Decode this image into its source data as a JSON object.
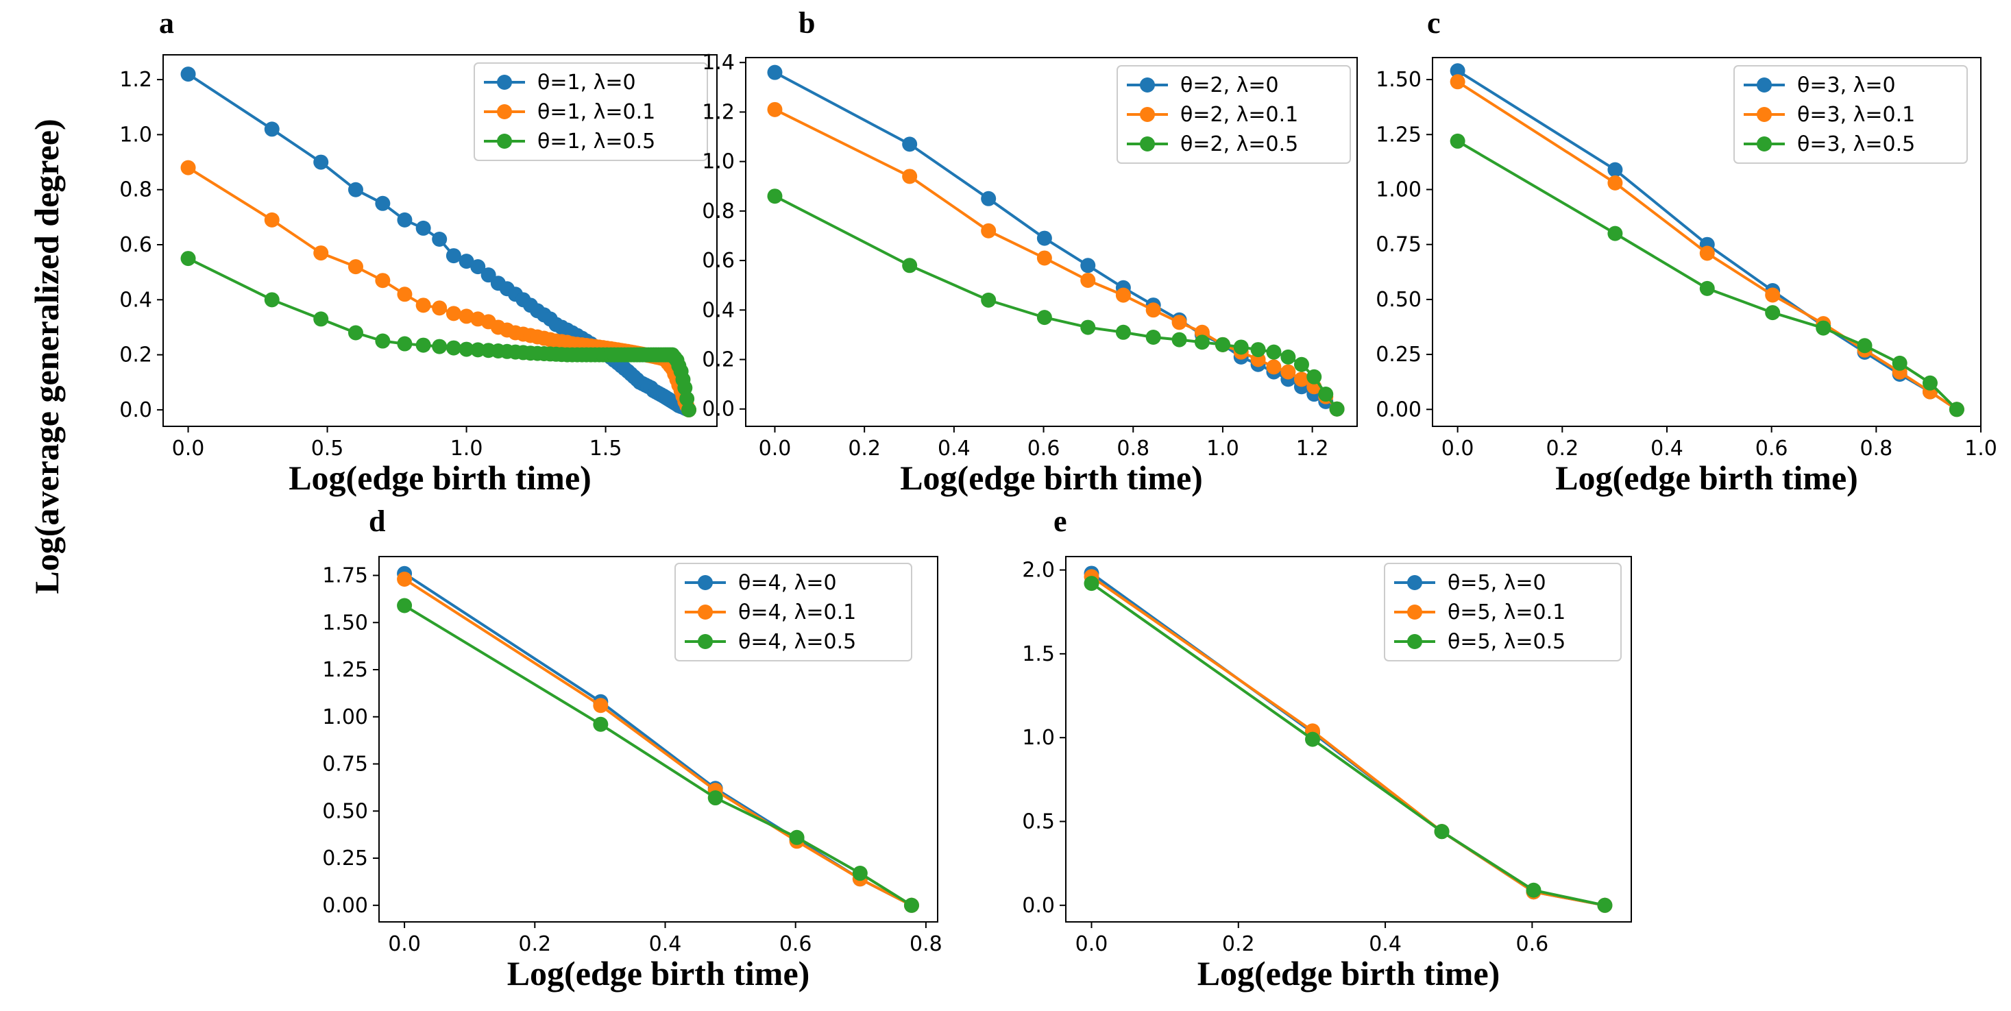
{
  "figure": {
    "shared_ylabel": "Log(average generalized degree)"
  },
  "colors": {
    "lambda_0": "#1f77b4",
    "lambda_0_1": "#ff7f0e",
    "lambda_0_5": "#2ca02c"
  },
  "chart_data": [
    {
      "type": "line",
      "panel": "a",
      "xlabel": "Log(edge birth time)",
      "xlim": [
        -0.09,
        1.9
      ],
      "ylim": [
        -0.06,
        1.29
      ],
      "xticks": [
        "0.0",
        "0.5",
        "1.0",
        "1.5"
      ],
      "xtick_values": [
        0,
        0.5,
        1.0,
        1.5
      ],
      "yticks": [
        "0.0",
        "0.2",
        "0.4",
        "0.6",
        "0.8",
        "1.0",
        "1.2"
      ],
      "ytick_values": [
        0,
        0.2,
        0.4,
        0.6,
        0.8,
        1.0,
        1.2
      ],
      "series": [
        {
          "name": "θ=1, λ=0",
          "x": [
            0,
            0.301,
            0.477,
            0.602,
            0.699,
            0.778,
            0.845,
            0.903,
            0.954,
            1.0,
            1.041,
            1.079,
            1.114,
            1.146,
            1.176,
            1.204,
            1.23,
            1.255,
            1.279,
            1.301,
            1.322,
            1.342,
            1.362,
            1.38,
            1.398,
            1.415,
            1.431,
            1.447,
            1.462,
            1.477,
            1.491,
            1.505,
            1.519,
            1.531,
            1.544,
            1.556,
            1.568,
            1.58,
            1.591,
            1.602,
            1.613,
            1.623,
            1.633,
            1.643,
            1.653,
            1.663,
            1.672,
            1.681,
            1.69,
            1.699,
            1.708,
            1.716,
            1.724,
            1.732,
            1.74,
            1.748,
            1.756,
            1.763,
            1.771,
            1.778,
            1.785,
            1.792,
            1.799
          ],
          "values": [
            1.22,
            1.02,
            0.9,
            0.8,
            0.75,
            0.69,
            0.66,
            0.62,
            0.56,
            0.54,
            0.52,
            0.49,
            0.46,
            0.44,
            0.42,
            0.4,
            0.38,
            0.36,
            0.345,
            0.33,
            0.31,
            0.3,
            0.29,
            0.28,
            0.27,
            0.26,
            0.25,
            0.24,
            0.23,
            0.22,
            0.215,
            0.2,
            0.19,
            0.18,
            0.17,
            0.16,
            0.15,
            0.14,
            0.13,
            0.12,
            0.11,
            0.1,
            0.095,
            0.09,
            0.085,
            0.08,
            0.07,
            0.065,
            0.06,
            0.055,
            0.05,
            0.045,
            0.04,
            0.035,
            0.03,
            0.025,
            0.02,
            0.015,
            0.012,
            0.01,
            0.006,
            0.003,
            0.0
          ]
        },
        {
          "name": "θ=1, λ=0.1",
          "x": [
            0,
            0.301,
            0.477,
            0.602,
            0.699,
            0.778,
            0.845,
            0.903,
            0.954,
            1.0,
            1.041,
            1.079,
            1.114,
            1.146,
            1.176,
            1.204,
            1.23,
            1.255,
            1.279,
            1.301,
            1.322,
            1.342,
            1.362,
            1.38,
            1.398,
            1.415,
            1.431,
            1.447,
            1.462,
            1.477,
            1.491,
            1.505,
            1.519,
            1.531,
            1.544,
            1.556,
            1.568,
            1.58,
            1.591,
            1.602,
            1.613,
            1.623,
            1.633,
            1.643,
            1.653,
            1.663,
            1.672,
            1.681,
            1.69,
            1.699,
            1.708,
            1.716,
            1.724,
            1.732,
            1.74,
            1.748,
            1.756,
            1.763,
            1.771,
            1.778,
            1.785,
            1.792,
            1.799
          ],
          "values": [
            0.88,
            0.69,
            0.57,
            0.52,
            0.47,
            0.42,
            0.38,
            0.37,
            0.35,
            0.34,
            0.33,
            0.32,
            0.3,
            0.29,
            0.28,
            0.275,
            0.27,
            0.265,
            0.26,
            0.255,
            0.25,
            0.248,
            0.245,
            0.24,
            0.238,
            0.236,
            0.234,
            0.232,
            0.23,
            0.228,
            0.226,
            0.224,
            0.222,
            0.22,
            0.218,
            0.216,
            0.214,
            0.212,
            0.21,
            0.208,
            0.206,
            0.204,
            0.202,
            0.2,
            0.198,
            0.196,
            0.194,
            0.192,
            0.19,
            0.188,
            0.185,
            0.18,
            0.17,
            0.16,
            0.15,
            0.13,
            0.11,
            0.09,
            0.07,
            0.05,
            0.03,
            0.015,
            0.0
          ]
        },
        {
          "name": "θ=1, λ=0.5",
          "x": [
            0,
            0.301,
            0.477,
            0.602,
            0.699,
            0.778,
            0.845,
            0.903,
            0.954,
            1.0,
            1.041,
            1.079,
            1.114,
            1.146,
            1.176,
            1.204,
            1.23,
            1.255,
            1.279,
            1.301,
            1.322,
            1.342,
            1.362,
            1.38,
            1.398,
            1.415,
            1.431,
            1.447,
            1.462,
            1.477,
            1.491,
            1.505,
            1.519,
            1.531,
            1.544,
            1.556,
            1.568,
            1.58,
            1.591,
            1.602,
            1.613,
            1.623,
            1.633,
            1.643,
            1.653,
            1.663,
            1.672,
            1.681,
            1.69,
            1.699,
            1.708,
            1.716,
            1.724,
            1.732,
            1.74,
            1.748,
            1.756,
            1.763,
            1.771,
            1.778,
            1.785,
            1.792,
            1.799
          ],
          "values": [
            0.55,
            0.4,
            0.33,
            0.28,
            0.25,
            0.24,
            0.235,
            0.23,
            0.225,
            0.22,
            0.218,
            0.216,
            0.214,
            0.212,
            0.21,
            0.208,
            0.206,
            0.205,
            0.204,
            0.203,
            0.202,
            0.201,
            0.2,
            0.2,
            0.2,
            0.2,
            0.2,
            0.2,
            0.2,
            0.2,
            0.2,
            0.2,
            0.2,
            0.2,
            0.2,
            0.2,
            0.2,
            0.2,
            0.2,
            0.2,
            0.2,
            0.2,
            0.2,
            0.2,
            0.2,
            0.2,
            0.2,
            0.2,
            0.2,
            0.2,
            0.2,
            0.2,
            0.2,
            0.2,
            0.2,
            0.19,
            0.18,
            0.16,
            0.14,
            0.11,
            0.08,
            0.04,
            0.0
          ]
        }
      ]
    },
    {
      "type": "line",
      "panel": "b",
      "xlabel": "Log(edge birth time)",
      "xlim": [
        -0.065,
        1.3
      ],
      "ylim": [
        -0.07,
        1.42
      ],
      "xticks": [
        "0.0",
        "0.2",
        "0.4",
        "0.6",
        "0.8",
        "1.0",
        "1.2"
      ],
      "xtick_values": [
        0,
        0.2,
        0.4,
        0.6,
        0.8,
        1.0,
        1.2
      ],
      "yticks": [
        "0.0",
        "0.2",
        "0.4",
        "0.6",
        "0.8",
        "1.0",
        "1.2",
        "1.4"
      ],
      "ytick_values": [
        0,
        0.2,
        0.4,
        0.6,
        0.8,
        1.0,
        1.2,
        1.4
      ],
      "series": [
        {
          "name": "θ=2, λ=0",
          "x": [
            0,
            0.301,
            0.477,
            0.602,
            0.699,
            0.778,
            0.845,
            0.903,
            0.954,
            1.0,
            1.041,
            1.079,
            1.114,
            1.146,
            1.176,
            1.204,
            1.23,
            1.255
          ],
          "values": [
            1.36,
            1.07,
            0.85,
            0.69,
            0.58,
            0.49,
            0.42,
            0.36,
            0.3,
            0.26,
            0.21,
            0.18,
            0.15,
            0.12,
            0.09,
            0.06,
            0.03,
            0.0
          ]
        },
        {
          "name": "θ=2, λ=0.1",
          "x": [
            0,
            0.301,
            0.477,
            0.602,
            0.699,
            0.778,
            0.845,
            0.903,
            0.954,
            1.0,
            1.041,
            1.079,
            1.114,
            1.146,
            1.176,
            1.204,
            1.23,
            1.255
          ],
          "values": [
            1.21,
            0.94,
            0.72,
            0.61,
            0.52,
            0.46,
            0.4,
            0.35,
            0.31,
            0.26,
            0.23,
            0.2,
            0.17,
            0.15,
            0.12,
            0.09,
            0.05,
            0.0
          ]
        },
        {
          "name": "θ=2, λ=0.5",
          "x": [
            0,
            0.301,
            0.477,
            0.602,
            0.699,
            0.778,
            0.845,
            0.903,
            0.954,
            1.0,
            1.041,
            1.079,
            1.114,
            1.146,
            1.176,
            1.204,
            1.23,
            1.255
          ],
          "values": [
            0.86,
            0.58,
            0.44,
            0.37,
            0.33,
            0.31,
            0.29,
            0.28,
            0.27,
            0.26,
            0.25,
            0.24,
            0.23,
            0.21,
            0.18,
            0.13,
            0.06,
            0.0
          ]
        }
      ]
    },
    {
      "type": "line",
      "panel": "c",
      "xlabel": "Log(edge birth time)",
      "xlim": [
        -0.048,
        1.0
      ],
      "ylim": [
        -0.077,
        1.6
      ],
      "xticks": [
        "0.0",
        "0.2",
        "0.4",
        "0.6",
        "0.8",
        "1.0"
      ],
      "xtick_values": [
        0,
        0.2,
        0.4,
        0.6,
        0.8,
        1.0
      ],
      "yticks": [
        "0.00",
        "0.25",
        "0.50",
        "0.75",
        "1.00",
        "1.25",
        "1.50"
      ],
      "ytick_values": [
        0,
        0.25,
        0.5,
        0.75,
        1.0,
        1.25,
        1.5
      ],
      "series": [
        {
          "name": "θ=3, λ=0",
          "x": [
            0,
            0.301,
            0.477,
            0.602,
            0.699,
            0.778,
            0.845,
            0.903,
            0.954
          ],
          "values": [
            1.54,
            1.09,
            0.75,
            0.54,
            0.38,
            0.26,
            0.16,
            0.08,
            0.0
          ]
        },
        {
          "name": "θ=3, λ=0.1",
          "x": [
            0,
            0.301,
            0.477,
            0.602,
            0.699,
            0.778,
            0.845,
            0.903,
            0.954
          ],
          "values": [
            1.49,
            1.03,
            0.71,
            0.52,
            0.39,
            0.27,
            0.17,
            0.08,
            0.0
          ]
        },
        {
          "name": "θ=3, λ=0.5",
          "x": [
            0,
            0.301,
            0.477,
            0.602,
            0.699,
            0.778,
            0.845,
            0.903,
            0.954
          ],
          "values": [
            1.22,
            0.8,
            0.55,
            0.44,
            0.37,
            0.29,
            0.21,
            0.12,
            0.0
          ]
        }
      ]
    },
    {
      "type": "line",
      "panel": "d",
      "xlabel": "Log(edge birth time)",
      "xlim": [
        -0.039,
        0.818
      ],
      "ylim": [
        -0.088,
        1.85
      ],
      "xticks": [
        "0.0",
        "0.2",
        "0.4",
        "0.6",
        "0.8"
      ],
      "xtick_values": [
        0,
        0.2,
        0.4,
        0.6,
        0.8
      ],
      "yticks": [
        "0.00",
        "0.25",
        "0.50",
        "0.75",
        "1.00",
        "1.25",
        "1.50",
        "1.75"
      ],
      "ytick_values": [
        0,
        0.25,
        0.5,
        0.75,
        1.0,
        1.25,
        1.5,
        1.75
      ],
      "series": [
        {
          "name": "θ=4, λ=0",
          "x": [
            0,
            0.301,
            0.477,
            0.602,
            0.699,
            0.778
          ],
          "values": [
            1.76,
            1.08,
            0.62,
            0.35,
            0.14,
            0.0
          ]
        },
        {
          "name": "θ=4, λ=0.1",
          "x": [
            0,
            0.301,
            0.477,
            0.602,
            0.699,
            0.778
          ],
          "values": [
            1.73,
            1.06,
            0.61,
            0.34,
            0.14,
            0.0
          ]
        },
        {
          "name": "θ=4, λ=0.5",
          "x": [
            0,
            0.301,
            0.477,
            0.602,
            0.699,
            0.778
          ],
          "values": [
            1.59,
            0.96,
            0.57,
            0.36,
            0.17,
            0.0
          ]
        }
      ]
    },
    {
      "type": "line",
      "panel": "e",
      "xlabel": "Log(edge birth time)",
      "xlim": [
        -0.035,
        0.735
      ],
      "ylim": [
        -0.099,
        2.08
      ],
      "xticks": [
        "0.0",
        "0.2",
        "0.4",
        "0.6"
      ],
      "xtick_values": [
        0,
        0.2,
        0.4,
        0.6
      ],
      "yticks": [
        "0.0",
        "0.5",
        "1.0",
        "1.5",
        "2.0"
      ],
      "ytick_values": [
        0,
        0.5,
        1.0,
        1.5,
        2.0
      ],
      "series": [
        {
          "name": "θ=5, λ=0",
          "x": [
            0,
            0.301,
            0.477,
            0.602,
            0.699
          ],
          "values": [
            1.98,
            1.03,
            0.44,
            0.08,
            0.0
          ]
        },
        {
          "name": "θ=5, λ=0.1",
          "x": [
            0,
            0.301,
            0.477,
            0.602,
            0.699
          ],
          "values": [
            1.96,
            1.04,
            0.44,
            0.08,
            0.0
          ]
        },
        {
          "name": "θ=5, λ=0.5",
          "x": [
            0,
            0.301,
            0.477,
            0.602,
            0.699
          ],
          "values": [
            1.92,
            0.99,
            0.44,
            0.09,
            0.0
          ]
        }
      ]
    }
  ]
}
